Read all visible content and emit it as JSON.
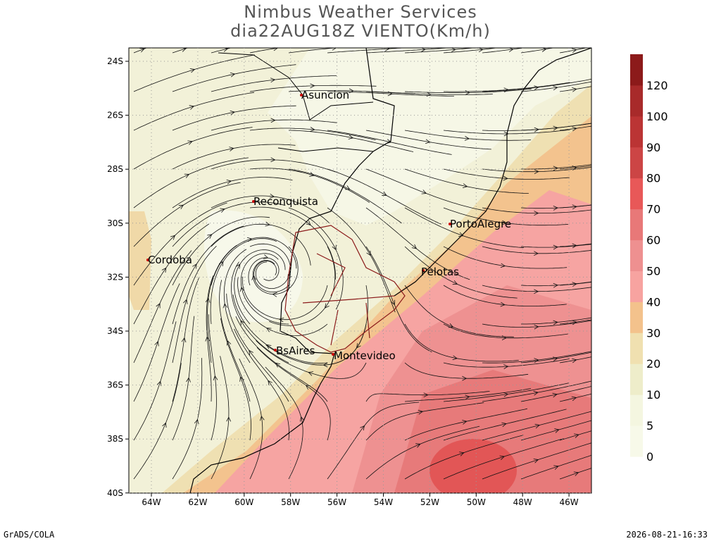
{
  "header": {
    "title": "Nimbus Weather Services",
    "subtitle": "dia22AUG18Z VIENTO(Km/h)"
  },
  "map": {
    "lat_labels": [
      "24S",
      "26S",
      "28S",
      "30S",
      "32S",
      "34S",
      "36S",
      "38S",
      "40S"
    ],
    "lon_labels": [
      "64W",
      "62W",
      "60W",
      "58W",
      "56W",
      "54W",
      "52W",
      "50W",
      "48W",
      "46W"
    ],
    "cities": [
      "Asuncion",
      "Reconquista",
      "Cordoba",
      "PortoAlegre",
      "Pelotas",
      "BsAires",
      "Montevideo"
    ]
  },
  "colorbar": {
    "labels": [
      0,
      5,
      10,
      20,
      30,
      40,
      50,
      60,
      70,
      80,
      90,
      100,
      120
    ]
  },
  "footer": {
    "left": "GrADS/COLA",
    "right": "2026-08-21-16:33"
  }
}
